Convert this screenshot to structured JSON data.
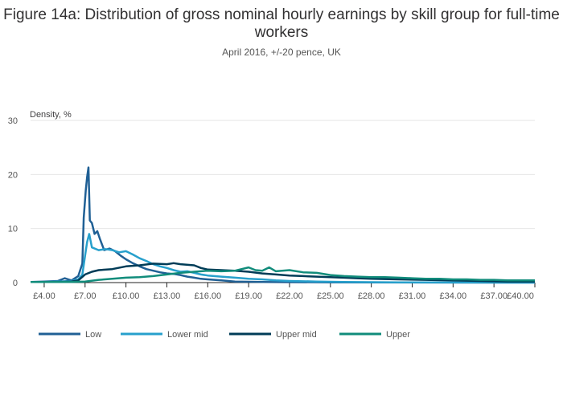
{
  "chart_data": {
    "type": "line",
    "title": "Figure 14a: Distribution of gross nominal hourly earnings by skill group for full-time workers",
    "subtitle": "April 2016, +/-20 pence, UK",
    "ylabel": "Density, %",
    "xlabel": "",
    "xlim": [
      3.0,
      40.0
    ],
    "ylim": [
      0,
      30
    ],
    "yticks": [
      0,
      10,
      20,
      30
    ],
    "xticks": [
      {
        "value": 4,
        "label": "£4.00"
      },
      {
        "value": 7,
        "label": "£7.00"
      },
      {
        "value": 10,
        "label": "£10.00"
      },
      {
        "value": 13,
        "label": "£13.00"
      },
      {
        "value": 16,
        "label": "£16.00"
      },
      {
        "value": 19,
        "label": "£19.00"
      },
      {
        "value": 22,
        "label": "£22.00"
      },
      {
        "value": 25,
        "label": "£25.00"
      },
      {
        "value": 28,
        "label": "£28.00"
      },
      {
        "value": 31,
        "label": "£31.00"
      },
      {
        "value": 34,
        "label": "£34.00"
      },
      {
        "value": 37,
        "label": "£37.00"
      },
      {
        "value": 40,
        "label": "£40.00"
      }
    ],
    "grid": true,
    "legend_position": "bottom",
    "series": [
      {
        "name": "Low",
        "color": "#206095",
        "points": [
          [
            3.0,
            0.1
          ],
          [
            4.0,
            0.2
          ],
          [
            5.0,
            0.3
          ],
          [
            5.5,
            0.8
          ],
          [
            6.0,
            0.4
          ],
          [
            6.5,
            1.2
          ],
          [
            6.8,
            3.5
          ],
          [
            6.9,
            12.0
          ],
          [
            7.05,
            17.0
          ],
          [
            7.15,
            19.5
          ],
          [
            7.25,
            21.3
          ],
          [
            7.35,
            11.5
          ],
          [
            7.5,
            11.0
          ],
          [
            7.7,
            9.0
          ],
          [
            7.9,
            9.5
          ],
          [
            8.1,
            8.0
          ],
          [
            8.4,
            6.0
          ],
          [
            8.8,
            6.3
          ],
          [
            9.2,
            5.8
          ],
          [
            9.6,
            5.0
          ],
          [
            10.0,
            4.3
          ],
          [
            10.5,
            3.6
          ],
          [
            11.0,
            3.0
          ],
          [
            11.5,
            2.5
          ],
          [
            12.0,
            2.2
          ],
          [
            12.5,
            1.9
          ],
          [
            13.0,
            1.7
          ],
          [
            13.5,
            1.6
          ],
          [
            14.0,
            1.4
          ],
          [
            14.5,
            1.1
          ],
          [
            15.0,
            0.9
          ],
          [
            15.5,
            0.7
          ],
          [
            16.0,
            0.6
          ],
          [
            17.0,
            0.4
          ],
          [
            18.0,
            0.2
          ],
          [
            20.0,
            0.1
          ],
          [
            25.0,
            0.05
          ],
          [
            40.0,
            0.0
          ]
        ]
      },
      {
        "name": "Lower mid",
        "color": "#27a0cc",
        "points": [
          [
            3.0,
            0.1
          ],
          [
            4.0,
            0.1
          ],
          [
            5.0,
            0.2
          ],
          [
            6.0,
            0.3
          ],
          [
            6.5,
            0.6
          ],
          [
            6.8,
            1.5
          ],
          [
            7.0,
            5.0
          ],
          [
            7.15,
            7.5
          ],
          [
            7.3,
            9.0
          ],
          [
            7.5,
            6.5
          ],
          [
            8.0,
            6.0
          ],
          [
            8.5,
            6.2
          ],
          [
            9.0,
            6.0
          ],
          [
            9.5,
            5.6
          ],
          [
            10.0,
            5.8
          ],
          [
            10.5,
            5.2
          ],
          [
            11.0,
            4.5
          ],
          [
            11.5,
            4.0
          ],
          [
            12.0,
            3.4
          ],
          [
            12.5,
            3.0
          ],
          [
            13.0,
            2.7
          ],
          [
            13.5,
            2.3
          ],
          [
            14.0,
            2.0
          ],
          [
            14.5,
            2.1
          ],
          [
            15.0,
            1.8
          ],
          [
            15.5,
            1.5
          ],
          [
            16.0,
            1.3
          ],
          [
            17.0,
            1.1
          ],
          [
            18.0,
            0.9
          ],
          [
            19.0,
            0.7
          ],
          [
            20.0,
            0.6
          ],
          [
            21.0,
            0.4
          ],
          [
            22.0,
            0.3
          ],
          [
            24.0,
            0.2
          ],
          [
            26.0,
            0.1
          ],
          [
            30.0,
            0.05
          ],
          [
            40.0,
            0.0
          ]
        ]
      },
      {
        "name": "Upper mid",
        "color": "#003c57",
        "points": [
          [
            3.0,
            0.1
          ],
          [
            5.0,
            0.1
          ],
          [
            6.0,
            0.2
          ],
          [
            6.5,
            0.4
          ],
          [
            7.0,
            1.5
          ],
          [
            7.5,
            2.0
          ],
          [
            8.0,
            2.3
          ],
          [
            9.0,
            2.5
          ],
          [
            10.0,
            3.0
          ],
          [
            11.0,
            3.2
          ],
          [
            12.0,
            3.5
          ],
          [
            13.0,
            3.4
          ],
          [
            13.5,
            3.6
          ],
          [
            14.0,
            3.4
          ],
          [
            15.0,
            3.2
          ],
          [
            15.5,
            2.7
          ],
          [
            16.0,
            2.4
          ],
          [
            17.0,
            2.3
          ],
          [
            18.0,
            2.2
          ],
          [
            19.0,
            2.0
          ],
          [
            20.0,
            1.7
          ],
          [
            21.0,
            1.5
          ],
          [
            22.0,
            1.3
          ],
          [
            23.0,
            1.2
          ],
          [
            24.0,
            1.1
          ],
          [
            25.0,
            1.0
          ],
          [
            26.0,
            0.9
          ],
          [
            27.0,
            0.8
          ],
          [
            28.0,
            0.7
          ],
          [
            30.0,
            0.6
          ],
          [
            32.0,
            0.5
          ],
          [
            34.0,
            0.4
          ],
          [
            36.0,
            0.3
          ],
          [
            38.0,
            0.2
          ],
          [
            40.0,
            0.2
          ]
        ]
      },
      {
        "name": "Upper",
        "color": "#118c7b",
        "points": [
          [
            3.0,
            0.1
          ],
          [
            5.0,
            0.1
          ],
          [
            6.0,
            0.1
          ],
          [
            7.0,
            0.2
          ],
          [
            8.0,
            0.5
          ],
          [
            9.0,
            0.7
          ],
          [
            10.0,
            0.9
          ],
          [
            11.0,
            1.0
          ],
          [
            12.0,
            1.2
          ],
          [
            13.0,
            1.5
          ],
          [
            14.0,
            1.8
          ],
          [
            15.0,
            2.0
          ],
          [
            16.0,
            2.2
          ],
          [
            17.0,
            2.1
          ],
          [
            18.0,
            2.2
          ],
          [
            19.0,
            2.8
          ],
          [
            19.5,
            2.3
          ],
          [
            20.0,
            2.2
          ],
          [
            20.5,
            2.8
          ],
          [
            21.0,
            2.1
          ],
          [
            22.0,
            2.3
          ],
          [
            23.0,
            1.9
          ],
          [
            24.0,
            1.8
          ],
          [
            25.0,
            1.4
          ],
          [
            26.0,
            1.2
          ],
          [
            27.0,
            1.1
          ],
          [
            28.0,
            1.0
          ],
          [
            29.0,
            1.0
          ],
          [
            30.0,
            0.9
          ],
          [
            31.0,
            0.8
          ],
          [
            32.0,
            0.7
          ],
          [
            33.0,
            0.7
          ],
          [
            34.0,
            0.6
          ],
          [
            35.0,
            0.6
          ],
          [
            36.0,
            0.5
          ],
          [
            37.0,
            0.5
          ],
          [
            38.0,
            0.4
          ],
          [
            39.0,
            0.4
          ],
          [
            40.0,
            0.4
          ]
        ]
      }
    ]
  }
}
